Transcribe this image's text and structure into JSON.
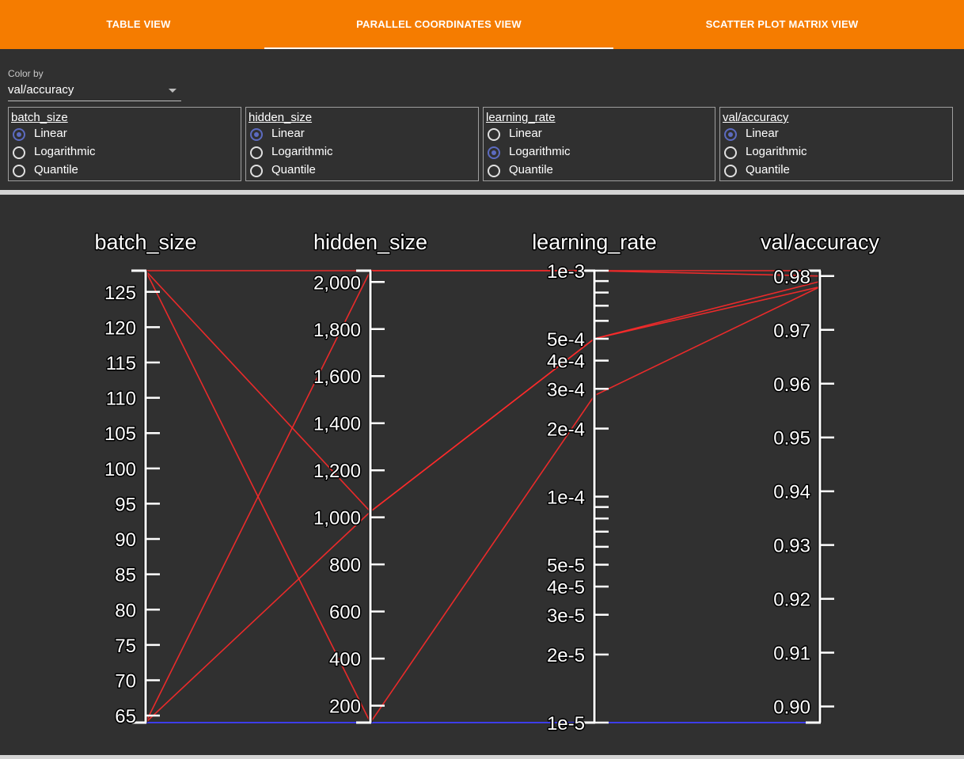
{
  "tabs": [
    {
      "label": "TABLE VIEW",
      "active": false
    },
    {
      "label": "PARALLEL COORDINATES VIEW",
      "active": true
    },
    {
      "label": "SCATTER PLOT MATRIX VIEW",
      "active": false
    }
  ],
  "colors": {
    "tab_bar": "#f57c00",
    "background": "#303030",
    "radio_selected": "#5c6bc0",
    "line_high": "#ff2a2a",
    "line_low": "#3f3fff"
  },
  "color_by": {
    "label": "Color by",
    "value": "val/accuracy"
  },
  "scale_options": [
    "Linear",
    "Logarithmic",
    "Quantile"
  ],
  "scales": [
    {
      "name": "batch_size",
      "selected": "Linear"
    },
    {
      "name": "hidden_size",
      "selected": "Linear"
    },
    {
      "name": "learning_rate",
      "selected": "Logarithmic"
    },
    {
      "name": "val/accuracy",
      "selected": "Linear"
    }
  ],
  "chart_data": {
    "type": "parallel_coordinates",
    "axes": [
      {
        "name": "batch_size",
        "scale": "linear",
        "range": [
          64,
          128
        ],
        "ticks": [
          "125",
          "120",
          "115",
          "110",
          "105",
          "100",
          "95",
          "90",
          "85",
          "80",
          "75",
          "70",
          "65"
        ]
      },
      {
        "name": "hidden_size",
        "scale": "linear",
        "range": [
          128,
          2048
        ],
        "ticks": [
          "2,000",
          "1,800",
          "1,600",
          "1,400",
          "1,200",
          "1,000",
          "800",
          "600",
          "400",
          "200"
        ]
      },
      {
        "name": "learning_rate",
        "scale": "log",
        "range": [
          1e-05,
          0.001
        ],
        "ticks": [
          "1e-3",
          "5e-4",
          "4e-4",
          "3e-4",
          "2e-4",
          "1e-4",
          "5e-5",
          "4e-5",
          "3e-5",
          "2e-5",
          "1e-5"
        ]
      },
      {
        "name": "val/accuracy",
        "scale": "linear",
        "range": [
          0.897,
          0.981
        ],
        "ticks": [
          "0.98",
          "0.97",
          "0.96",
          "0.95",
          "0.94",
          "0.93",
          "0.92",
          "0.91",
          "0.90"
        ]
      }
    ],
    "runs": [
      {
        "values": [
          128,
          2048,
          0.001,
          0.981
        ],
        "color": "high"
      },
      {
        "values": [
          128,
          1024,
          0.0005,
          0.979
        ],
        "color": "high"
      },
      {
        "values": [
          64,
          1024,
          0.0005,
          0.978
        ],
        "color": "high"
      },
      {
        "values": [
          128,
          128,
          0.00028,
          0.978
        ],
        "color": "high"
      },
      {
        "values": [
          64,
          2048,
          0.001,
          0.98
        ],
        "color": "high"
      },
      {
        "values": [
          64,
          128,
          1e-05,
          0.897
        ],
        "color": "low"
      }
    ]
  }
}
